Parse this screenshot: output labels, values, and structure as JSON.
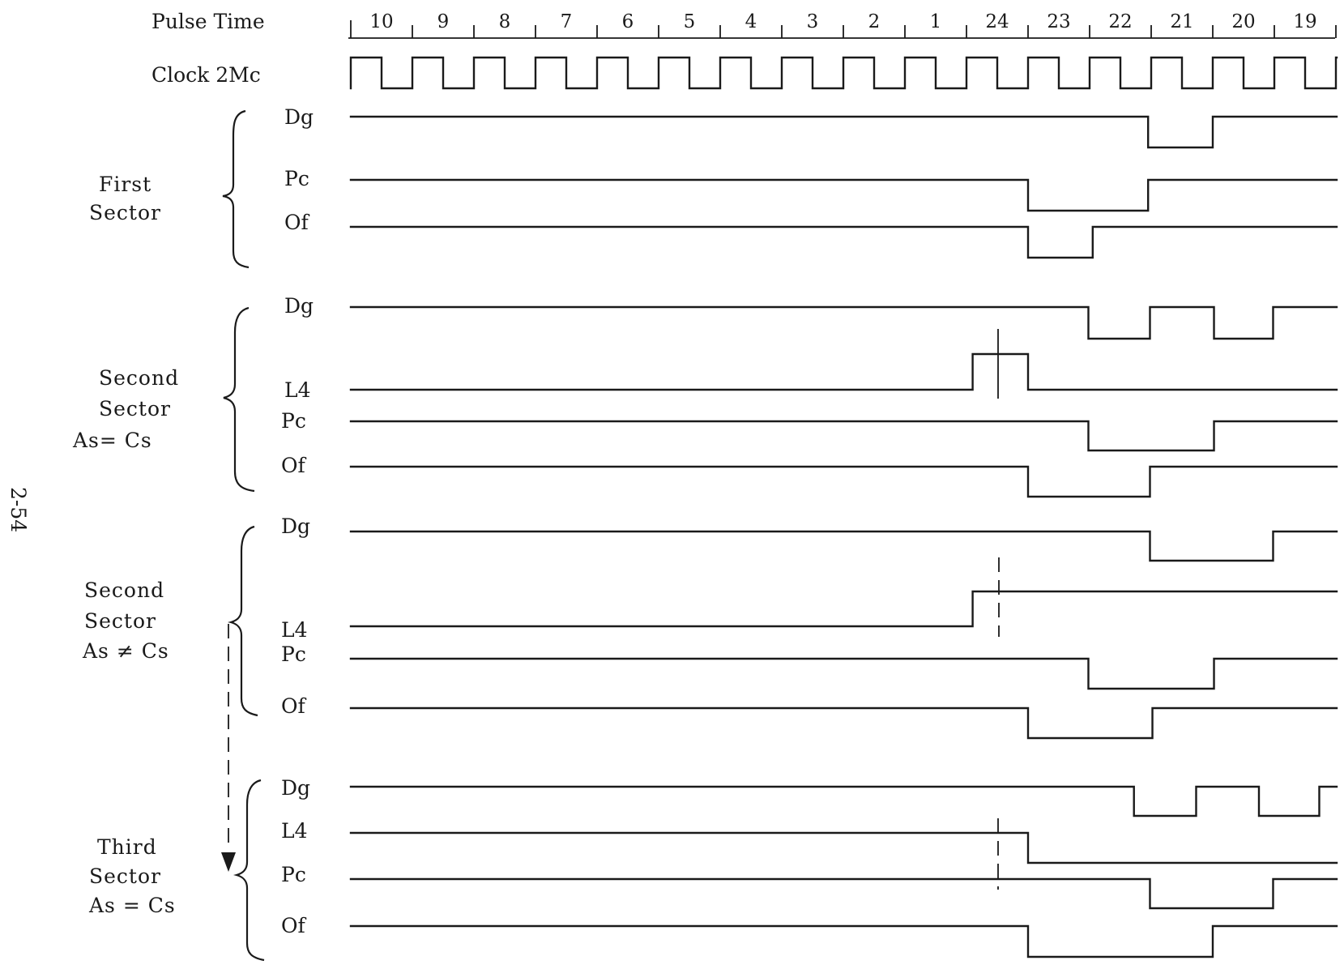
{
  "header": {
    "pulse_time_label": "Pulse Time",
    "clock_label": "Clock 2Mc",
    "pulse_times": [
      "10",
      "9",
      "8",
      "7",
      "6",
      "5",
      "4",
      "3",
      "2",
      "1",
      "24",
      "23",
      "22",
      "21",
      "20",
      "19"
    ]
  },
  "page_number": "2-54",
  "groups": [
    {
      "id": "first",
      "title_lines": [
        "First",
        "Sector"
      ],
      "signals": [
        {
          "name": "Dg",
          "levels": [
            [
              0,
              1
            ],
            [
              12.95,
              0
            ],
            [
              14.0,
              1
            ]
          ]
        },
        {
          "name": "Pc",
          "levels": [
            [
              0,
              1
            ],
            [
              11.0,
              0
            ],
            [
              12.95,
              1
            ]
          ]
        },
        {
          "name": "Of",
          "levels": [
            [
              0,
              1
            ],
            [
              11.0,
              0
            ],
            [
              12.05,
              1
            ]
          ]
        }
      ]
    },
    {
      "id": "second_eq",
      "title_lines": [
        "Second",
        "Sector",
        "As= Cs"
      ],
      "signals": [
        {
          "name": "Dg",
          "levels": [
            [
              0,
              1
            ],
            [
              11.98,
              0
            ],
            [
              12.98,
              1
            ],
            [
              14.02,
              0
            ],
            [
              14.98,
              1
            ]
          ]
        },
        {
          "name": "L4",
          "levels": [
            [
              0,
              0
            ],
            [
              10.1,
              1
            ],
            [
              11.0,
              0
            ]
          ]
        },
        {
          "name": "Pc",
          "levels": [
            [
              0,
              1
            ],
            [
              11.98,
              0
            ],
            [
              14.02,
              1
            ]
          ]
        },
        {
          "name": "Of",
          "levels": [
            [
              0,
              1
            ],
            [
              11.0,
              0
            ],
            [
              12.98,
              1
            ]
          ]
        }
      ]
    },
    {
      "id": "second_ne",
      "title_lines": [
        "Second",
        "Sector",
        "As ≠ Cs"
      ],
      "signals": [
        {
          "name": "Dg",
          "levels": [
            [
              0,
              1
            ],
            [
              12.98,
              0
            ],
            [
              14.98,
              1
            ]
          ]
        },
        {
          "name": "L4",
          "levels": [
            [
              0,
              0
            ],
            [
              10.1,
              1
            ]
          ]
        },
        {
          "name": "Pc",
          "levels": [
            [
              0,
              1
            ],
            [
              11.98,
              0
            ],
            [
              14.02,
              1
            ]
          ]
        },
        {
          "name": "Of",
          "levels": [
            [
              0,
              1
            ],
            [
              11.0,
              0
            ],
            [
              13.02,
              1
            ]
          ]
        }
      ]
    },
    {
      "id": "third",
      "title_lines": [
        "Third",
        "Sector",
        "As = Cs"
      ],
      "signals": [
        {
          "name": "Dg",
          "levels": [
            [
              0,
              1
            ],
            [
              12.72,
              0
            ],
            [
              13.73,
              1
            ],
            [
              14.75,
              0
            ],
            [
              15.73,
              1
            ]
          ]
        },
        {
          "name": "L4",
          "levels": [
            [
              0,
              1
            ],
            [
              11.0,
              0
            ]
          ]
        },
        {
          "name": "Pc",
          "levels": [
            [
              0,
              1
            ],
            [
              12.98,
              0
            ],
            [
              14.98,
              1
            ]
          ]
        },
        {
          "name": "Of",
          "levels": [
            [
              0,
              1
            ],
            [
              11.0,
              0
            ],
            [
              14.0,
              1
            ]
          ]
        }
      ]
    }
  ]
}
